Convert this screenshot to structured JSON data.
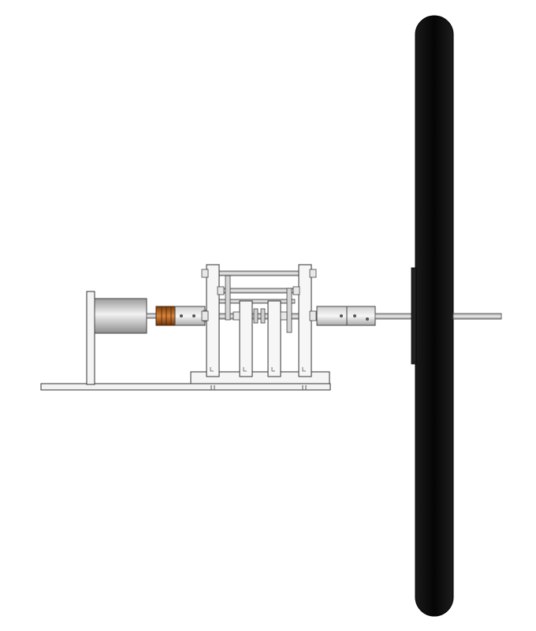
{
  "drawing": {
    "view": "side view",
    "colors": {
      "background": "#ffffff",
      "outline": "#333333",
      "part_fill": "#f4f4f4",
      "metal_light": "#e6e6e6",
      "metal_mid": "#b9b9b9",
      "metal_dark": "#8a8a8a",
      "coupling_copper": "#b5651d",
      "wheel": "#0d0d0d"
    },
    "components": [
      "base-plate",
      "riser-block",
      "motor-bracket",
      "motor-body",
      "flexible-coupling",
      "shaft-collar",
      "bearing-plate",
      "tie-rod",
      "cam-follower-link",
      "output-coupling",
      "output-shaft",
      "steering-wheel"
    ]
  }
}
